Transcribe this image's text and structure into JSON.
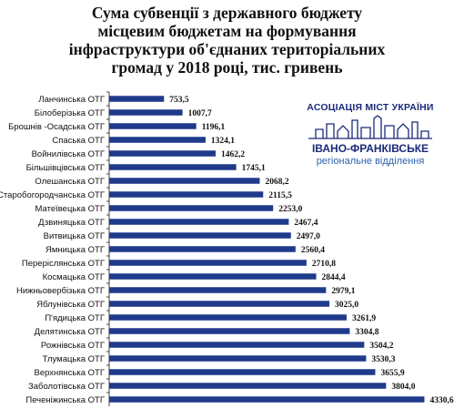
{
  "title_lines": [
    "Сума субвенції з державного бюджету",
    "місцевим бюджетам на формування",
    "інфраструктури об'єднаних територіальних",
    "громад у 2018 році, тис. гривень"
  ],
  "logo": {
    "line1": "АСОЦІАЦІЯ МІСТ УКРАЇНИ",
    "line2": "ІВАНО-ФРАНКІВСЬКЕ",
    "line3": "регіональне відділення"
  },
  "colors": {
    "bar": "#1f3a8a",
    "axis": "#444444",
    "text": "#111111"
  },
  "chart_data": {
    "type": "bar",
    "orientation": "horizontal",
    "title": "Сума субвенції з державного бюджету місцевим бюджетам на формування інфраструктури об'єднаних територіальних громад у 2018 році, тис. гривень",
    "xlabel": "",
    "ylabel": "",
    "xlim": [
      0,
      4500
    ],
    "grid": false,
    "categories": [
      "Ланчинська ОТГ",
      "Білоберізька ОТГ",
      "Брошнів -Осадська ОТГ",
      "Спаська ОТГ",
      "Войнилівська ОТГ",
      "Більшівцівська ОТГ",
      "Олешанська ОТГ",
      "Старобогородчанська ОТГ",
      "Матеївецька ОТГ",
      "Дзвиняцька ОТГ",
      "Витвицька ОТГ",
      "Ямницька ОТГ",
      "Переріслянська ОТГ",
      "Космацька ОТГ",
      "Нижньовербізька ОТГ",
      "Яблунівська ОТГ",
      "П'ядицька ОТГ",
      "Делятинська ОТГ",
      "Рожнівська ОТГ",
      "Тлумацька ОТГ",
      "Верхнянська ОТГ",
      "Заболотівська ОТГ",
      "Печеніжинська ОТГ"
    ],
    "values": [
      753.5,
      1007.7,
      1196.1,
      1324.1,
      1462.2,
      1745.1,
      2068.2,
      2115.5,
      2253.0,
      2467.4,
      2497.0,
      2560.4,
      2710.8,
      2844.4,
      2979.1,
      3025.0,
      3261.9,
      3304.8,
      3504.2,
      3530.3,
      3655.9,
      3804.0,
      4330.6
    ],
    "value_labels": [
      "753,5",
      "1007,7",
      "1196,1",
      "1324,1",
      "1462,2",
      "1745,1",
      "2068,2",
      "2115,5",
      "2253,0",
      "2467,4",
      "2497,0",
      "2560,4",
      "2710,8",
      "2844,4",
      "2979,1",
      "3025,0",
      "3261,9",
      "3304,8",
      "3504,2",
      "3530,3",
      "3655,9",
      "3804,0",
      "4330,6"
    ]
  }
}
